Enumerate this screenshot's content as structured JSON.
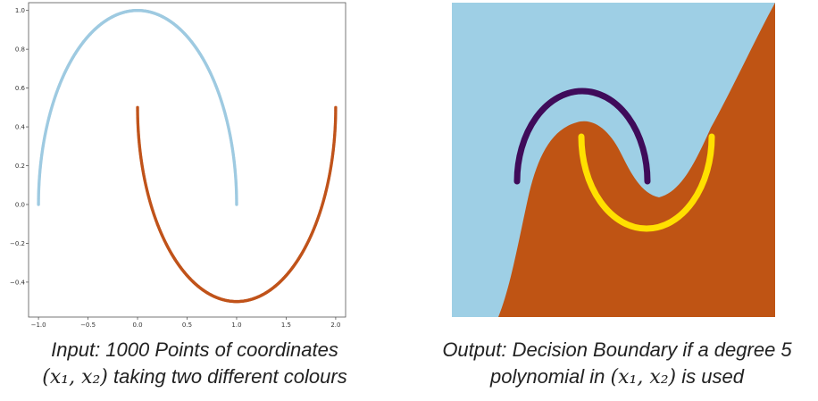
{
  "chart_data": [
    {
      "type": "scatter",
      "title": "",
      "xlabel": "",
      "ylabel": "",
      "xlim": [
        -1.1,
        2.1
      ],
      "ylim": [
        -0.58,
        1.04
      ],
      "x_ticks": [
        -1.0,
        -0.5,
        0.0,
        0.5,
        1.0,
        1.5,
        2.0
      ],
      "x_tick_labels": [
        "−1.0",
        "−0.5",
        "0.0",
        "0.5",
        "1.0",
        "1.5",
        "2.0"
      ],
      "y_ticks": [
        -0.4,
        -0.2,
        0.0,
        0.2,
        0.4,
        0.6,
        0.8,
        1.0
      ],
      "y_tick_labels": [
        "−0.4",
        "−0.2",
        "0.0",
        "0.2",
        "0.4",
        "0.6",
        "0.8",
        "1.0"
      ],
      "grid": false,
      "series": [
        {
          "shape": "upper-half-circle",
          "center": [
            0.0,
            0.0
          ],
          "radius": 1.0,
          "theta_range_deg": [
            0,
            180
          ],
          "points": 500,
          "color": "#9ecae1"
        },
        {
          "shape": "lower-half-circle",
          "center": [
            1.0,
            0.5
          ],
          "radius": 1.0,
          "theta_range_deg": [
            180,
            360
          ],
          "points": 500,
          "color": "#c0531a"
        }
      ]
    },
    {
      "type": "decision-boundary",
      "title": "",
      "polynomial_degree": 5,
      "region_colors": {
        "class_a": "#9ecfe5",
        "class_b": "#bf5414"
      },
      "series": [
        {
          "shape": "upper-half-circle",
          "color": "#3f0b5a"
        },
        {
          "shape": "lower-half-circle",
          "color": "#ffe000"
        }
      ]
    }
  ],
  "captions": {
    "left_line1": "Input: 1000 Points of coordinates",
    "left_line2_math": "(x₁, x₂)",
    "left_line2_rest": " taking two different colours",
    "right_line1": "Output: Decision Boundary if a degree 5",
    "right_line2_pre": "polynomial in ",
    "right_line2_math": "(x₁, x₂)",
    "right_line2_post": " is used"
  }
}
